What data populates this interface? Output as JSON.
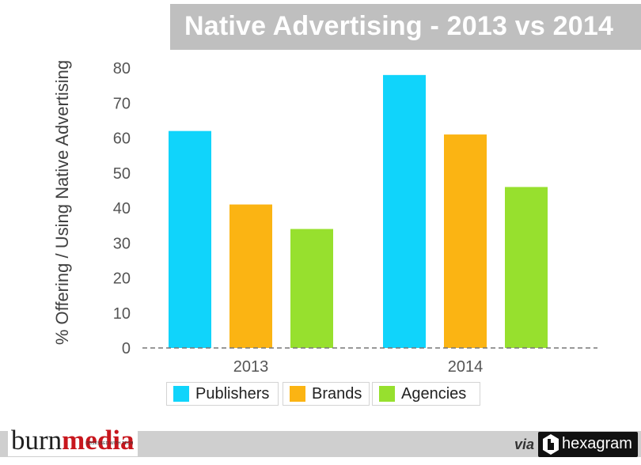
{
  "title": "Native Advertising - 2013 vs 2014",
  "colors": {
    "publishers": "#10d4fb",
    "brands": "#fbb413",
    "agencies": "#97e02e",
    "title_bg": "#bfbfbf",
    "footer_bg": "#cfcfcf",
    "brand_red": "#c8161d"
  },
  "chart_data": {
    "type": "bar",
    "categories": [
      "2013",
      "2014"
    ],
    "series": [
      {
        "name": "Publishers",
        "values": [
          62,
          78
        ]
      },
      {
        "name": "Brands",
        "values": [
          41,
          61
        ]
      },
      {
        "name": "Agencies",
        "values": [
          34,
          46
        ]
      }
    ],
    "title": "Native Advertising - 2013 vs 2014",
    "xlabel": "",
    "ylabel": "% Offering / Using Native Advertising",
    "ylim": [
      0,
      80
    ],
    "yticks": [
      "0",
      "10",
      "20",
      "30",
      "40",
      "50",
      "60",
      "70",
      "80"
    ],
    "grid": false,
    "legend_position": "bottom"
  },
  "footer": {
    "brand_part1": "burn",
    "brand_part2": "media",
    "brand_tagline": "OBSESSED WITH TECH",
    "via": "via",
    "partner": "hexagram",
    "partner_icon": "hexagram-logo-icon"
  }
}
